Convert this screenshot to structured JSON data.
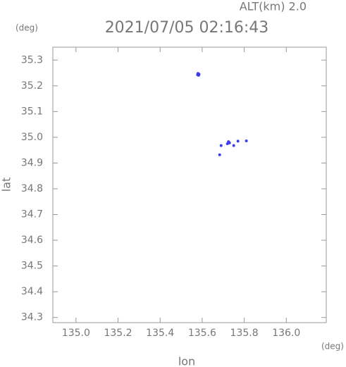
{
  "chart_data": {
    "type": "scatter",
    "title": "2021/07/05 02:16:43",
    "annotation": "ALT(km) 2.0",
    "x_label": "lon",
    "y_label": "lat",
    "x_unit": "(deg)",
    "y_unit": "(deg)",
    "color": "#3c3cf0",
    "x": [
      135.578,
      135.585,
      135.58,
      135.583,
      135.69,
      135.72,
      135.725,
      135.73,
      135.75,
      135.77,
      135.81,
      135.683
    ],
    "y": [
      35.243,
      35.245,
      35.248,
      35.241,
      34.968,
      34.975,
      34.983,
      34.978,
      34.968,
      34.985,
      34.986,
      34.932
    ],
    "xlim": [
      134.89,
      136.19
    ],
    "ylim": [
      34.28,
      35.35
    ],
    "xticks": [
      {
        "value": 135,
        "label": "135.0"
      },
      135.2,
      135.4,
      135.6,
      135.8,
      {
        "value": 136,
        "label": "136.0"
      }
    ],
    "yticks": [
      35.3,
      35.2,
      35.1,
      {
        "value": 35,
        "label": "35.0"
      },
      34.9,
      34.8,
      34.7,
      34.6,
      34.5,
      34.4,
      34.3
    ]
  }
}
